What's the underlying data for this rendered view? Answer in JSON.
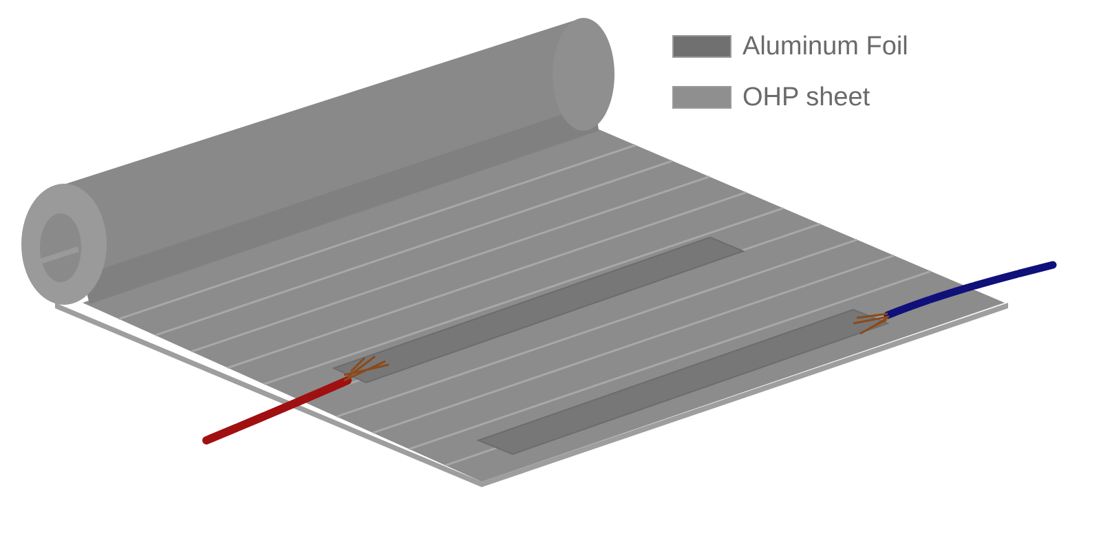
{
  "legend": {
    "items": [
      {
        "label": "Aluminum Foil",
        "color": "#707070"
      },
      {
        "label": "OHP sheet",
        "color": "#8f8f8f"
      }
    ]
  },
  "colors": {
    "sheet": "#8c8c8c",
    "sheet_edge": "#9e9e9e",
    "stripe": "#a6a6a6",
    "roll": "#898989",
    "roll_shadow": "#808080",
    "foil": "#767676",
    "wire_positive": "#a01010",
    "wire_negative": "#10107a",
    "wire_strands": "#8b4a1a"
  }
}
